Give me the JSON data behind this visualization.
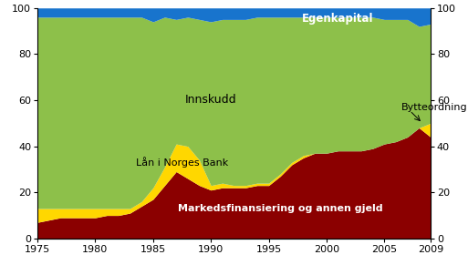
{
  "years": [
    1975,
    1976,
    1977,
    1978,
    1979,
    1980,
    1981,
    1982,
    1983,
    1984,
    1985,
    1986,
    1987,
    1988,
    1989,
    1990,
    1991,
    1992,
    1993,
    1994,
    1995,
    1996,
    1997,
    1998,
    1999,
    2000,
    2001,
    2002,
    2003,
    2004,
    2005,
    2006,
    2007,
    2008,
    2009
  ],
  "markedsfinansiering": [
    7,
    8,
    9,
    9,
    9,
    9,
    10,
    10,
    11,
    14,
    17,
    23,
    29,
    26,
    23,
    21,
    22,
    22,
    22,
    23,
    23,
    27,
    32,
    35,
    37,
    37,
    38,
    38,
    38,
    39,
    41,
    42,
    44,
    48,
    44
  ],
  "lan_norges_bank": [
    6,
    5,
    4,
    4,
    4,
    4,
    3,
    3,
    2,
    2,
    5,
    8,
    12,
    14,
    11,
    2,
    2,
    1,
    1,
    1,
    1,
    1,
    1,
    1,
    0,
    0,
    0,
    0,
    0,
    0,
    0,
    0,
    0,
    0,
    6
  ],
  "innskudd": [
    83,
    83,
    83,
    83,
    83,
    83,
    83,
    83,
    83,
    80,
    72,
    65,
    54,
    56,
    61,
    71,
    71,
    72,
    72,
    72,
    72,
    68,
    63,
    60,
    59,
    59,
    58,
    58,
    58,
    57,
    54,
    53,
    51,
    44,
    43
  ],
  "egenkapital": [
    4,
    4,
    4,
    4,
    4,
    4,
    4,
    4,
    4,
    4,
    6,
    4,
    5,
    4,
    5,
    6,
    5,
    5,
    5,
    4,
    4,
    4,
    4,
    4,
    4,
    4,
    4,
    4,
    4,
    4,
    5,
    5,
    5,
    8,
    7
  ],
  "color_markedsfinansiering": "#8B0000",
  "color_lan_norges_bank": "#FFD700",
  "color_innskudd": "#8DC04A",
  "color_egenkapital": "#1874CD",
  "label_lan_norges_bank": "Lån i Norges Bank",
  "label_innskudd": "Innskudd",
  "label_bytteordning": "Bytteordning",
  "ylim": [
    0,
    100
  ],
  "xlim": [
    1975,
    2009
  ],
  "yticks": [
    0,
    20,
    40,
    60,
    80,
    100
  ],
  "xticks": [
    1975,
    1980,
    1985,
    1990,
    1995,
    2000,
    2005,
    2009
  ],
  "background_color": "#ffffff"
}
